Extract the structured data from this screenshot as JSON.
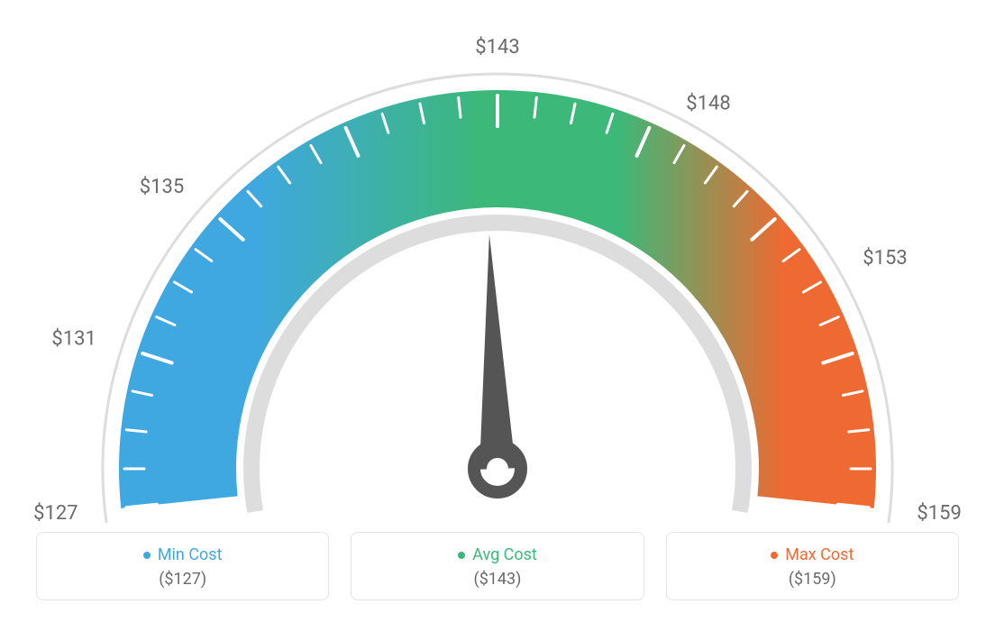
{
  "gauge": {
    "type": "gauge",
    "min": 127,
    "max": 159,
    "avg": 143,
    "tick_step": 1,
    "major_tick_step": 4,
    "outer_radius": 420,
    "arc_thickness": 130,
    "needle_angle_deg": 92,
    "colors": {
      "min": "#3fa8e0",
      "avg": "#3cb878",
      "max": "#ef6a32",
      "outer_ring": "#dddddd",
      "inner_ring": "#dddddd",
      "tick": "#ffffff",
      "label": "#6a6a6a",
      "needle": "#555555",
      "background": "#ffffff"
    },
    "label_prefix": "$",
    "labels": [
      {
        "value": 127,
        "text": "$127"
      },
      {
        "value": 131,
        "text": "$131"
      },
      {
        "value": 135,
        "text": "$135"
      },
      {
        "value": 143,
        "text": "$143"
      },
      {
        "value": 148,
        "text": "$148"
      },
      {
        "value": 153,
        "text": "$153"
      },
      {
        "value": 159,
        "text": "$159"
      }
    ],
    "label_fontsize": 22
  },
  "legend": {
    "min": {
      "label": "Min Cost",
      "value": "($127)",
      "color": "#3fa8e0"
    },
    "avg": {
      "label": "Avg Cost",
      "value": "($143)",
      "color": "#3cb878"
    },
    "max": {
      "label": "Max Cost",
      "value": "($159)",
      "color": "#ef6a32"
    },
    "border_color": "#e4e4e4",
    "value_color": "#6a6a6a",
    "title_fontsize": 18,
    "value_fontsize": 18
  }
}
